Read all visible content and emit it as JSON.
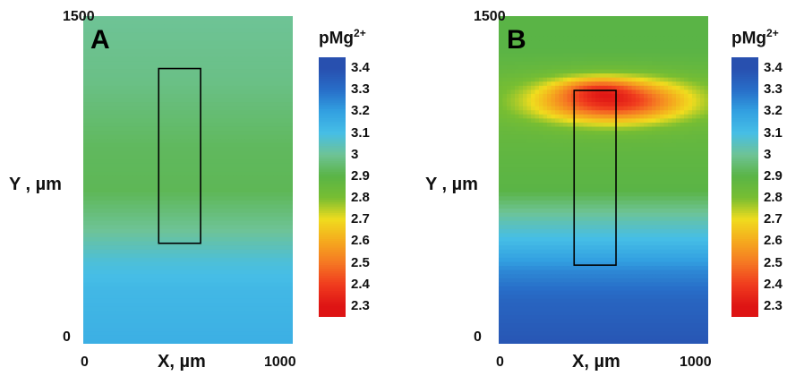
{
  "chart_data": [
    {
      "type": "heatmap",
      "panel_label": "A",
      "xlabel": "X, µm",
      "ylabel": "Y , µm",
      "x_ticks": [
        "0",
        "1000"
      ],
      "y_ticks": [
        "0",
        "1500"
      ],
      "xlim": [
        0,
        1000
      ],
      "ylim": [
        0,
        1500
      ],
      "colorbar": {
        "title": "pMg",
        "title_superscript": "2+",
        "ticks": [
          "3.4",
          "3.3",
          "3.2",
          "3.1",
          "3",
          "2.9",
          "2.8",
          "2.7",
          "2.6",
          "2.5",
          "2.4",
          "2.3"
        ],
        "range": [
          2.25,
          3.45
        ]
      },
      "rectangle": {
        "x": [
          360,
          560
        ],
        "y": [
          460,
          1260
        ]
      },
      "field": {
        "base": [
          [
            1500,
            3.0
          ],
          [
            1200,
            2.98
          ],
          [
            900,
            2.93
          ],
          [
            700,
            2.92
          ],
          [
            520,
            3.0
          ],
          [
            380,
            3.08
          ],
          [
            250,
            3.12
          ],
          [
            0,
            3.15
          ]
        ],
        "hotspots": []
      }
    },
    {
      "type": "heatmap",
      "panel_label": "B",
      "xlabel": "X, µm",
      "ylabel": "Y , µm",
      "x_ticks": [
        "0",
        "1000"
      ],
      "y_ticks": [
        "0",
        "1500"
      ],
      "xlim": [
        0,
        1000
      ],
      "ylim": [
        0,
        1500
      ],
      "colorbar": {
        "title": "pMg",
        "title_superscript": "2+",
        "ticks": [
          "3.4",
          "3.3",
          "3.2",
          "3.1",
          "3",
          "2.9",
          "2.8",
          "2.7",
          "2.6",
          "2.5",
          "2.4",
          "2.3"
        ],
        "range": [
          2.25,
          3.45
        ]
      },
      "rectangle": {
        "x": [
          360,
          560
        ],
        "y": [
          360,
          1160
        ]
      },
      "field": {
        "base": [
          [
            1500,
            2.9
          ],
          [
            1350,
            2.9
          ],
          [
            1200,
            2.85
          ],
          [
            1050,
            2.85
          ],
          [
            850,
            2.88
          ],
          [
            700,
            2.9
          ],
          [
            580,
            3.02
          ],
          [
            460,
            3.12
          ],
          [
            330,
            3.25
          ],
          [
            200,
            3.33
          ],
          [
            0,
            3.38
          ]
        ],
        "hotspots": [
          {
            "x": 540,
            "y": 1110,
            "sx": 350,
            "sy": 95,
            "amp": 0.5
          },
          {
            "x": 470,
            "y": 1170,
            "sx": 170,
            "sy": 45,
            "amp": 0.15
          }
        ]
      }
    }
  ]
}
